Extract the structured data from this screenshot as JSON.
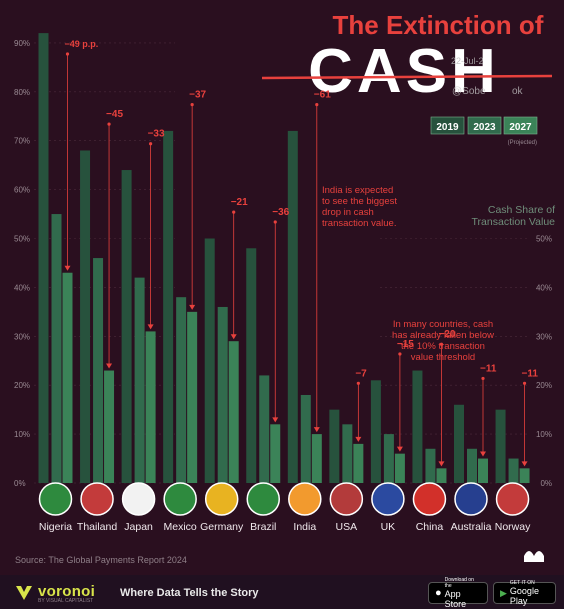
{
  "header": {
    "title_line1": "The Extinction of",
    "title_word": "CASH",
    "watermark_date": "22-Jul-2",
    "watermark_user": "@Sobe",
    "watermark_user2": "ok"
  },
  "legend": {
    "years": [
      "2019",
      "2023",
      "2027"
    ],
    "projected_note": "(Projected)"
  },
  "axis_title": [
    "Cash Share of",
    "Transaction Value"
  ],
  "annotations": {
    "india": [
      "India is expected",
      "to see the biggest",
      "drop in cash",
      "transaction value."
    ],
    "threshold": [
      "In many countries, cash",
      "has already fallen below",
      "the 10% transaction",
      "value threshold"
    ]
  },
  "chart_data": {
    "type": "bar",
    "title": "The Extinction of CASH",
    "ylabel": "Cash Share of Transaction Value",
    "ylim": [
      0,
      90
    ],
    "yticks": [
      "0%",
      "10%",
      "20%",
      "30%",
      "40%",
      "50%",
      "60%",
      "70%",
      "80%",
      "90%"
    ],
    "right_yticks": [
      "0%",
      "10%",
      "20%",
      "30%",
      "40%",
      "50%"
    ],
    "categories": [
      "Nigeria",
      "Thailand",
      "Japan",
      "Mexico",
      "Germany",
      "Brazil",
      "India",
      "USA",
      "UK",
      "China",
      "Australia",
      "Norway"
    ],
    "series": [
      {
        "name": "2019",
        "values": [
          92,
          68,
          64,
          72,
          50,
          48,
          72,
          15,
          21,
          23,
          16,
          15
        ]
      },
      {
        "name": "2023",
        "values": [
          55,
          46,
          42,
          38,
          36,
          22,
          18,
          12,
          10,
          7,
          7,
          5
        ]
      },
      {
        "name": "2027",
        "values": [
          43,
          23,
          31,
          35,
          29,
          12,
          10,
          8,
          6,
          3,
          5,
          3
        ]
      }
    ],
    "change_labels": [
      "−49 p.p.",
      "−45",
      "−33",
      "−37",
      "−21",
      "−36",
      "−61",
      "−7",
      "−15",
      "−20",
      "−11",
      "−11"
    ],
    "colors": {
      "2019": "#27523d",
      "2023": "#316b4d",
      "2027": "#3b8358",
      "accent": "#e8413d"
    },
    "grid": true
  },
  "footer": {
    "source": "Source: The Global Payments Report 2024",
    "brand": "voronoi",
    "brand_sub": "BY VISUAL CAPITALIST",
    "tagline": "Where Data Tells the Story",
    "app_store_small": "Download on the",
    "app_store": "App Store",
    "google_small": "GET IT ON",
    "google": "Google Play"
  }
}
